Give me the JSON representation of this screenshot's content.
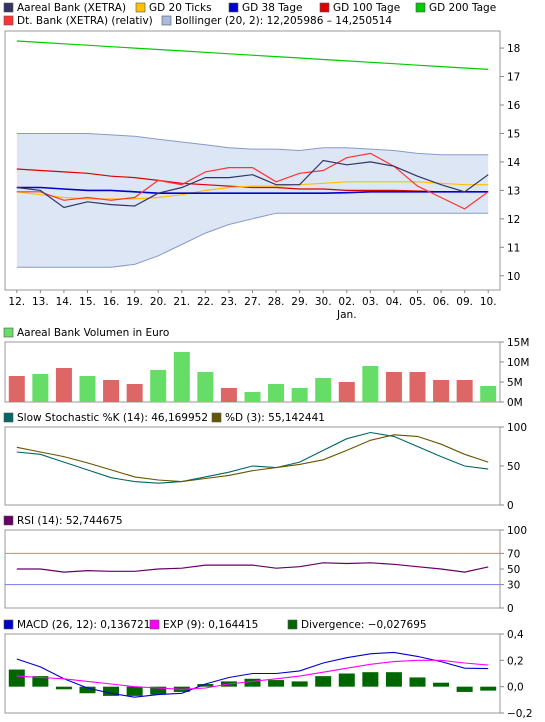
{
  "chart_data": [
    {
      "type": "line",
      "legend": [
        {
          "label": "Aareal Bank (XETRA)",
          "color": "#333366"
        },
        {
          "label": "GD 20 Ticks",
          "color": "#ffc000"
        },
        {
          "label": "GD 38 Tage",
          "color": "#0000cc"
        },
        {
          "label": "GD 100 Tage",
          "color": "#dd0000"
        },
        {
          "label": "GD 200 Tage",
          "color": "#00cc00"
        },
        {
          "label": "Dt. Bank (XETRA) (relativ)",
          "color": "#ff3333"
        },
        {
          "label": "Bollinger (20, 2): 12,205986 – 14,250514",
          "color": "#aabbdd"
        }
      ],
      "x_tick_labels": [
        "12.",
        "13.",
        "14.",
        "15.",
        "16.",
        "19.",
        "20.",
        "21.",
        "22.",
        "23.",
        "27.",
        "28.",
        "29.",
        "30.",
        "02.",
        "03.",
        "04.",
        "05.",
        "06.",
        "09.",
        "10."
      ],
      "x_sublabel": {
        "label": "Jan.",
        "index": 14
      },
      "ylim": [
        9.5,
        18.6
      ],
      "yticks": [
        10,
        11,
        12,
        13,
        14,
        15,
        16,
        17,
        18
      ],
      "grid": false,
      "legend_placement": "top",
      "series": [
        {
          "name": "Aareal Bank (XETRA)",
          "color": "#333366",
          "values": [
            13.1,
            13.0,
            12.4,
            12.6,
            12.5,
            12.45,
            12.9,
            13.1,
            13.45,
            13.45,
            13.55,
            13.2,
            13.2,
            14.05,
            13.9,
            14.0,
            13.85,
            13.5,
            13.2,
            12.95,
            13.55
          ]
        },
        {
          "name": "Dt. Bank (XETRA) (relativ)",
          "color": "#ff3333",
          "values": [
            12.95,
            12.95,
            12.65,
            12.75,
            12.65,
            12.75,
            13.35,
            13.2,
            13.65,
            13.8,
            13.8,
            13.3,
            13.6,
            13.7,
            14.15,
            14.3,
            13.85,
            13.15,
            12.75,
            12.35,
            12.95
          ]
        },
        {
          "name": "GD 20 Ticks",
          "color": "#ffc000",
          "values": [
            12.95,
            12.85,
            12.75,
            12.7,
            12.7,
            12.7,
            12.75,
            12.85,
            13.0,
            13.1,
            13.15,
            13.15,
            13.2,
            13.25,
            13.3,
            13.3,
            13.3,
            13.3,
            13.25,
            13.2,
            13.2
          ]
        },
        {
          "name": "GD 38 Tage",
          "color": "#0000cc",
          "values": [
            13.1,
            13.1,
            13.05,
            13.0,
            13.0,
            12.95,
            12.9,
            12.9,
            12.9,
            12.9,
            12.9,
            12.9,
            12.9,
            12.9,
            12.92,
            12.95,
            12.95,
            12.95,
            12.95,
            12.95,
            12.95
          ]
        },
        {
          "name": "GD 100 Tage",
          "color": "#dd0000",
          "values": [
            13.75,
            13.7,
            13.65,
            13.6,
            13.5,
            13.45,
            13.35,
            13.25,
            13.2,
            13.15,
            13.1,
            13.1,
            13.05,
            13.05,
            13.0,
            13.0,
            13.0,
            12.98,
            12.95,
            12.95,
            12.95
          ]
        },
        {
          "name": "GD 200 Tage",
          "color": "#00cc00",
          "values": [
            18.25,
            18.2,
            18.15,
            18.1,
            18.05,
            18.0,
            17.95,
            17.9,
            17.85,
            17.8,
            17.75,
            17.7,
            17.65,
            17.6,
            17.55,
            17.5,
            17.45,
            17.4,
            17.35,
            17.3,
            17.25
          ]
        },
        {
          "name": "Bollinger upper",
          "color": "#8899cc",
          "values": [
            15.0,
            15.0,
            15.0,
            15.0,
            14.95,
            14.9,
            14.8,
            14.7,
            14.6,
            14.5,
            14.45,
            14.45,
            14.4,
            14.5,
            14.5,
            14.45,
            14.4,
            14.3,
            14.25,
            14.25,
            14.25
          ]
        },
        {
          "name": "Bollinger lower",
          "color": "#8899cc",
          "values": [
            10.3,
            10.3,
            10.3,
            10.3,
            10.3,
            10.4,
            10.7,
            11.1,
            11.5,
            11.8,
            12.0,
            12.2,
            12.2,
            12.2,
            12.2,
            12.2,
            12.2,
            12.2,
            12.2,
            12.2,
            12.2
          ]
        }
      ]
    },
    {
      "type": "bar",
      "legend": [
        {
          "label": "Aareal Bank Volumen in Euro",
          "color": "#66dd66"
        }
      ],
      "ylim": [
        0,
        15
      ],
      "yticks": [
        0,
        5,
        10,
        15
      ],
      "ytick_labels": [
        "0M",
        "5M",
        "10M",
        "15M"
      ],
      "values": [
        6.5,
        7.0,
        8.5,
        6.5,
        5.5,
        4.5,
        8.0,
        12.5,
        7.5,
        3.5,
        2.5,
        4.5,
        3.5,
        6.0,
        5.0,
        9.0,
        7.5,
        7.5,
        5.5,
        5.5,
        4.0
      ],
      "colors": [
        "red",
        "green",
        "red",
        "green",
        "red",
        "red",
        "green",
        "green",
        "green",
        "red",
        "green",
        "green",
        "green",
        "green",
        "red",
        "green",
        "red",
        "red",
        "red",
        "red",
        "green"
      ],
      "color_map": {
        "red": "#dd6666",
        "green": "#66dd66"
      }
    },
    {
      "type": "line",
      "legend": [
        {
          "label": "Slow Stochastic %K (14): 46,169952",
          "color": "#006666"
        },
        {
          "label": "%D (3): 55,142441",
          "color": "#665500"
        }
      ],
      "ylim": [
        0,
        100
      ],
      "yticks": [
        0,
        50,
        100
      ],
      "series": [
        {
          "name": "Slow Stochastic %K (14)",
          "color": "#006666",
          "values": [
            68,
            65,
            55,
            45,
            35,
            30,
            28,
            30,
            36,
            42,
            50,
            48,
            55,
            70,
            85,
            93,
            88,
            75,
            62,
            50,
            46
          ]
        },
        {
          "name": "%D (3)",
          "color": "#665500",
          "values": [
            74,
            68,
            62,
            54,
            45,
            36,
            32,
            30,
            34,
            38,
            44,
            48,
            52,
            58,
            70,
            83,
            90,
            88,
            78,
            65,
            55
          ]
        }
      ]
    },
    {
      "type": "line",
      "legend": [
        {
          "label": "RSI (14): 52,744675",
          "color": "#660066"
        }
      ],
      "ylim": [
        0,
        100
      ],
      "yticks": [
        0,
        30,
        50,
        70,
        100
      ],
      "reference_lines": [
        {
          "value": 70,
          "color": "#ee7777"
        },
        {
          "value": 30,
          "color": "#7777ee"
        }
      ],
      "series": [
        {
          "name": "RSI (14)",
          "color": "#660066",
          "values": [
            50,
            50,
            46,
            48,
            47,
            47,
            50,
            51,
            55,
            55,
            55,
            51,
            53,
            58,
            57,
            58,
            56,
            53,
            50,
            46,
            52.7
          ]
        }
      ]
    },
    {
      "type": "bar",
      "legend": [
        {
          "label": "MACD (26, 12): 0,136721",
          "color": "#0000cc"
        },
        {
          "label": "EXP (9): 0,164415",
          "color": "#ff00ff"
        },
        {
          "label": "Divergence: −0,027695",
          "color": "#006600"
        }
      ],
      "ylim": [
        -0.2,
        0.4
      ],
      "yticks": [
        -0.2,
        0.0,
        0.2,
        0.4
      ],
      "ytick_labels": [
        "−0,2",
        "0,0",
        "0,2",
        "0,4"
      ],
      "bar_color": "#006600",
      "values": [
        0.13,
        0.08,
        -0.02,
        -0.05,
        -0.07,
        -0.07,
        -0.06,
        -0.04,
        0.02,
        0.04,
        0.06,
        0.05,
        0.04,
        0.08,
        0.1,
        0.11,
        0.11,
        0.07,
        0.03,
        -0.04,
        -0.03
      ],
      "series": [
        {
          "name": "MACD (26, 12)",
          "color": "#0000cc",
          "values": [
            0.21,
            0.15,
            0.06,
            -0.01,
            -0.05,
            -0.08,
            -0.06,
            -0.05,
            0.02,
            0.07,
            0.1,
            0.1,
            0.12,
            0.18,
            0.22,
            0.25,
            0.26,
            0.23,
            0.19,
            0.14,
            0.137
          ]
        },
        {
          "name": "EXP (9)",
          "color": "#ff00ff",
          "values": [
            0.08,
            0.07,
            0.06,
            0.04,
            0.02,
            0.0,
            -0.01,
            -0.02,
            -0.01,
            0.02,
            0.04,
            0.06,
            0.08,
            0.11,
            0.14,
            0.17,
            0.19,
            0.2,
            0.2,
            0.18,
            0.164
          ]
        }
      ]
    }
  ]
}
